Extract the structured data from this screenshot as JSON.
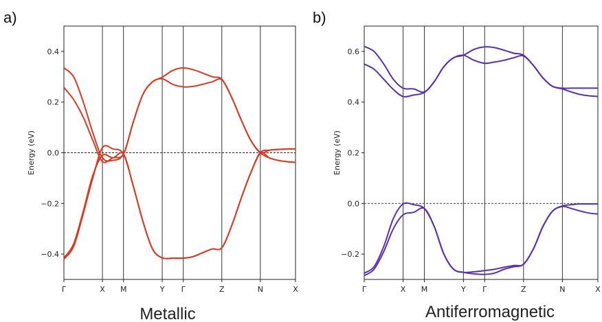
{
  "figure": {
    "panels": [
      {
        "letter": "a)",
        "caption": "Metallic"
      },
      {
        "letter": "b)",
        "caption": "Antiferromagnetic"
      }
    ]
  },
  "chart_data": [
    {
      "type": "line",
      "panel": "a)",
      "caption": "Metallic",
      "ylabel": "Energy (eV)",
      "xlabel": "",
      "ylim": [
        -0.5,
        0.5
      ],
      "yticks": [
        -0.4,
        -0.2,
        0.0,
        0.2,
        0.4
      ],
      "ytick_labels": [
        "−0.4",
        "−0.2",
        "0.0",
        "0.2",
        "0.4"
      ],
      "xlim": [
        0,
        11
      ],
      "kpoints": [
        {
          "label": "Γ",
          "x": 0
        },
        {
          "label": "X",
          "x": 1.83
        },
        {
          "label": "M",
          "x": 2.83
        },
        {
          "label": "Y",
          "x": 4.67
        },
        {
          "label": "Γ",
          "x": 5.67
        },
        {
          "label": "Z",
          "x": 7.5
        },
        {
          "label": "N",
          "x": 9.33
        },
        {
          "label": "X",
          "x": 11
        }
      ],
      "fermi_level": 0.0,
      "line_color": "#d63a22",
      "grid": false,
      "series": [
        {
          "x": [
            0,
            0.46,
            0.92,
            1.37,
            1.83,
            2.33,
            2.83,
            3.29,
            3.75,
            4.21,
            4.67,
            5.17,
            5.67,
            6.13,
            6.58,
            7.04,
            7.5,
            7.96,
            8.42,
            8.87,
            9.33,
            9.75,
            10.17,
            10.58,
            11
          ],
          "y": [
            0.335,
            0.3,
            0.2,
            0.08,
            -0.02,
            -0.03,
            -0.005,
            0.12,
            0.23,
            0.28,
            0.298,
            0.325,
            0.335,
            0.328,
            0.315,
            0.3,
            0.29,
            0.22,
            0.13,
            0.05,
            0.0,
            -0.02,
            -0.03,
            -0.035,
            -0.038
          ]
        },
        {
          "x": [
            0,
            0.46,
            0.92,
            1.37,
            1.83,
            2.33,
            2.83,
            3.29,
            3.75,
            4.21,
            4.67,
            5.17,
            5.67,
            6.13,
            6.58,
            7.04,
            7.5,
            7.96,
            8.42,
            8.87,
            9.33,
            9.75,
            10.17,
            10.58,
            11
          ],
          "y": [
            0.258,
            0.21,
            0.14,
            0.05,
            -0.035,
            -0.02,
            -0.005,
            0.12,
            0.23,
            0.28,
            0.292,
            0.27,
            0.26,
            0.262,
            0.27,
            0.28,
            0.288,
            0.22,
            0.13,
            0.05,
            0.0,
            0.01,
            0.013,
            0.015,
            0.015
          ]
        },
        {
          "x": [
            0,
            0.46,
            0.92,
            1.37,
            1.83,
            2.33,
            2.83,
            3.29,
            3.75,
            4.21,
            4.67,
            5.17,
            5.67,
            6.13,
            6.58,
            7.04,
            7.5,
            7.96,
            8.42,
            8.87,
            9.33,
            9.75,
            10.17,
            10.58,
            11
          ],
          "y": [
            -0.42,
            -0.37,
            -0.24,
            -0.1,
            0.02,
            0.015,
            -0.005,
            -0.13,
            -0.27,
            -0.38,
            -0.415,
            -0.416,
            -0.416,
            -0.41,
            -0.395,
            -0.38,
            -0.375,
            -0.29,
            -0.18,
            -0.08,
            0.0,
            0.01,
            0.013,
            0.015,
            0.015
          ]
        },
        {
          "x": [
            0,
            0.46,
            0.92,
            1.37,
            1.83,
            2.33,
            2.83,
            3.29,
            3.75,
            4.21,
            4.67,
            5.17,
            5.67,
            6.13,
            6.58,
            7.04,
            7.5,
            7.96,
            8.42,
            8.87,
            9.33,
            9.75,
            10.17,
            10.58,
            11
          ],
          "y": [
            -0.415,
            -0.36,
            -0.23,
            -0.09,
            -0.01,
            -0.02,
            -0.005,
            -0.13,
            -0.27,
            -0.38,
            -0.415,
            -0.416,
            -0.416,
            -0.41,
            -0.395,
            -0.38,
            -0.375,
            -0.29,
            -0.18,
            -0.08,
            0.0,
            -0.02,
            -0.03,
            -0.035,
            -0.038
          ]
        }
      ]
    },
    {
      "type": "line",
      "panel": "b)",
      "caption": "Antiferromagnetic",
      "ylabel": "Energy (eV)",
      "xlabel": "",
      "ylim": [
        -0.3,
        0.7
      ],
      "yticks": [
        -0.2,
        0.0,
        0.2,
        0.4,
        0.6
      ],
      "ytick_labels": [
        "−0.2",
        "0.0",
        "0.2",
        "0.4",
        "0.6"
      ],
      "xlim": [
        0,
        11
      ],
      "kpoints": [
        {
          "label": "Γ",
          "x": 0
        },
        {
          "label": "X",
          "x": 1.83
        },
        {
          "label": "M",
          "x": 2.83
        },
        {
          "label": "Y",
          "x": 4.67
        },
        {
          "label": "Γ",
          "x": 5.67
        },
        {
          "label": "Z",
          "x": 7.5
        },
        {
          "label": "N",
          "x": 9.33
        },
        {
          "label": "X",
          "x": 11
        }
      ],
      "fermi_level": 0.0,
      "line_color": "#5a2fae",
      "grid": false,
      "series": [
        {
          "x": [
            0,
            0.46,
            0.92,
            1.37,
            1.83,
            2.33,
            2.83,
            3.29,
            3.75,
            4.21,
            4.67,
            5.17,
            5.67,
            6.13,
            6.58,
            7.04,
            7.5,
            7.96,
            8.42,
            8.87,
            9.33,
            9.75,
            10.17,
            10.58,
            11
          ],
          "y": [
            0.62,
            0.6,
            0.55,
            0.49,
            0.455,
            0.452,
            0.44,
            0.48,
            0.54,
            0.575,
            0.585,
            0.608,
            0.618,
            0.615,
            0.605,
            0.593,
            0.585,
            0.545,
            0.495,
            0.462,
            0.455,
            0.455,
            0.455,
            0.455,
            0.455
          ]
        },
        {
          "x": [
            0,
            0.46,
            0.92,
            1.37,
            1.83,
            2.33,
            2.83,
            3.29,
            3.75,
            4.21,
            4.67,
            5.17,
            5.67,
            6.13,
            6.58,
            7.04,
            7.5,
            7.96,
            8.42,
            8.87,
            9.33,
            9.75,
            10.17,
            10.58,
            11
          ],
          "y": [
            0.55,
            0.53,
            0.49,
            0.45,
            0.422,
            0.428,
            0.438,
            0.48,
            0.54,
            0.575,
            0.585,
            0.565,
            0.553,
            0.558,
            0.565,
            0.575,
            0.582,
            0.545,
            0.495,
            0.462,
            0.452,
            0.44,
            0.43,
            0.425,
            0.422
          ]
        },
        {
          "x": [
            0,
            0.46,
            0.92,
            1.37,
            1.83,
            2.33,
            2.83,
            3.29,
            3.75,
            4.21,
            4.67,
            5.17,
            5.67,
            6.13,
            6.58,
            7.04,
            7.5,
            7.96,
            8.42,
            8.87,
            9.33,
            9.75,
            10.17,
            10.58,
            11
          ],
          "y": [
            -0.275,
            -0.25,
            -0.17,
            -0.06,
            -0.002,
            -0.005,
            -0.02,
            -0.09,
            -0.2,
            -0.26,
            -0.272,
            -0.27,
            -0.265,
            -0.26,
            -0.252,
            -0.245,
            -0.24,
            -0.18,
            -0.09,
            -0.03,
            -0.01,
            -0.005,
            -0.002,
            -0.002,
            -0.002
          ]
        },
        {
          "x": [
            0,
            0.46,
            0.92,
            1.37,
            1.83,
            2.33,
            2.83,
            3.29,
            3.75,
            4.21,
            4.67,
            5.17,
            5.67,
            6.13,
            6.58,
            7.04,
            7.5,
            7.96,
            8.42,
            8.87,
            9.33,
            9.75,
            10.17,
            10.58,
            11
          ],
          "y": [
            -0.285,
            -0.26,
            -0.19,
            -0.1,
            -0.045,
            -0.035,
            -0.02,
            -0.09,
            -0.2,
            -0.26,
            -0.272,
            -0.278,
            -0.28,
            -0.275,
            -0.26,
            -0.25,
            -0.24,
            -0.18,
            -0.09,
            -0.03,
            -0.012,
            -0.02,
            -0.03,
            -0.038,
            -0.042
          ]
        }
      ]
    }
  ]
}
